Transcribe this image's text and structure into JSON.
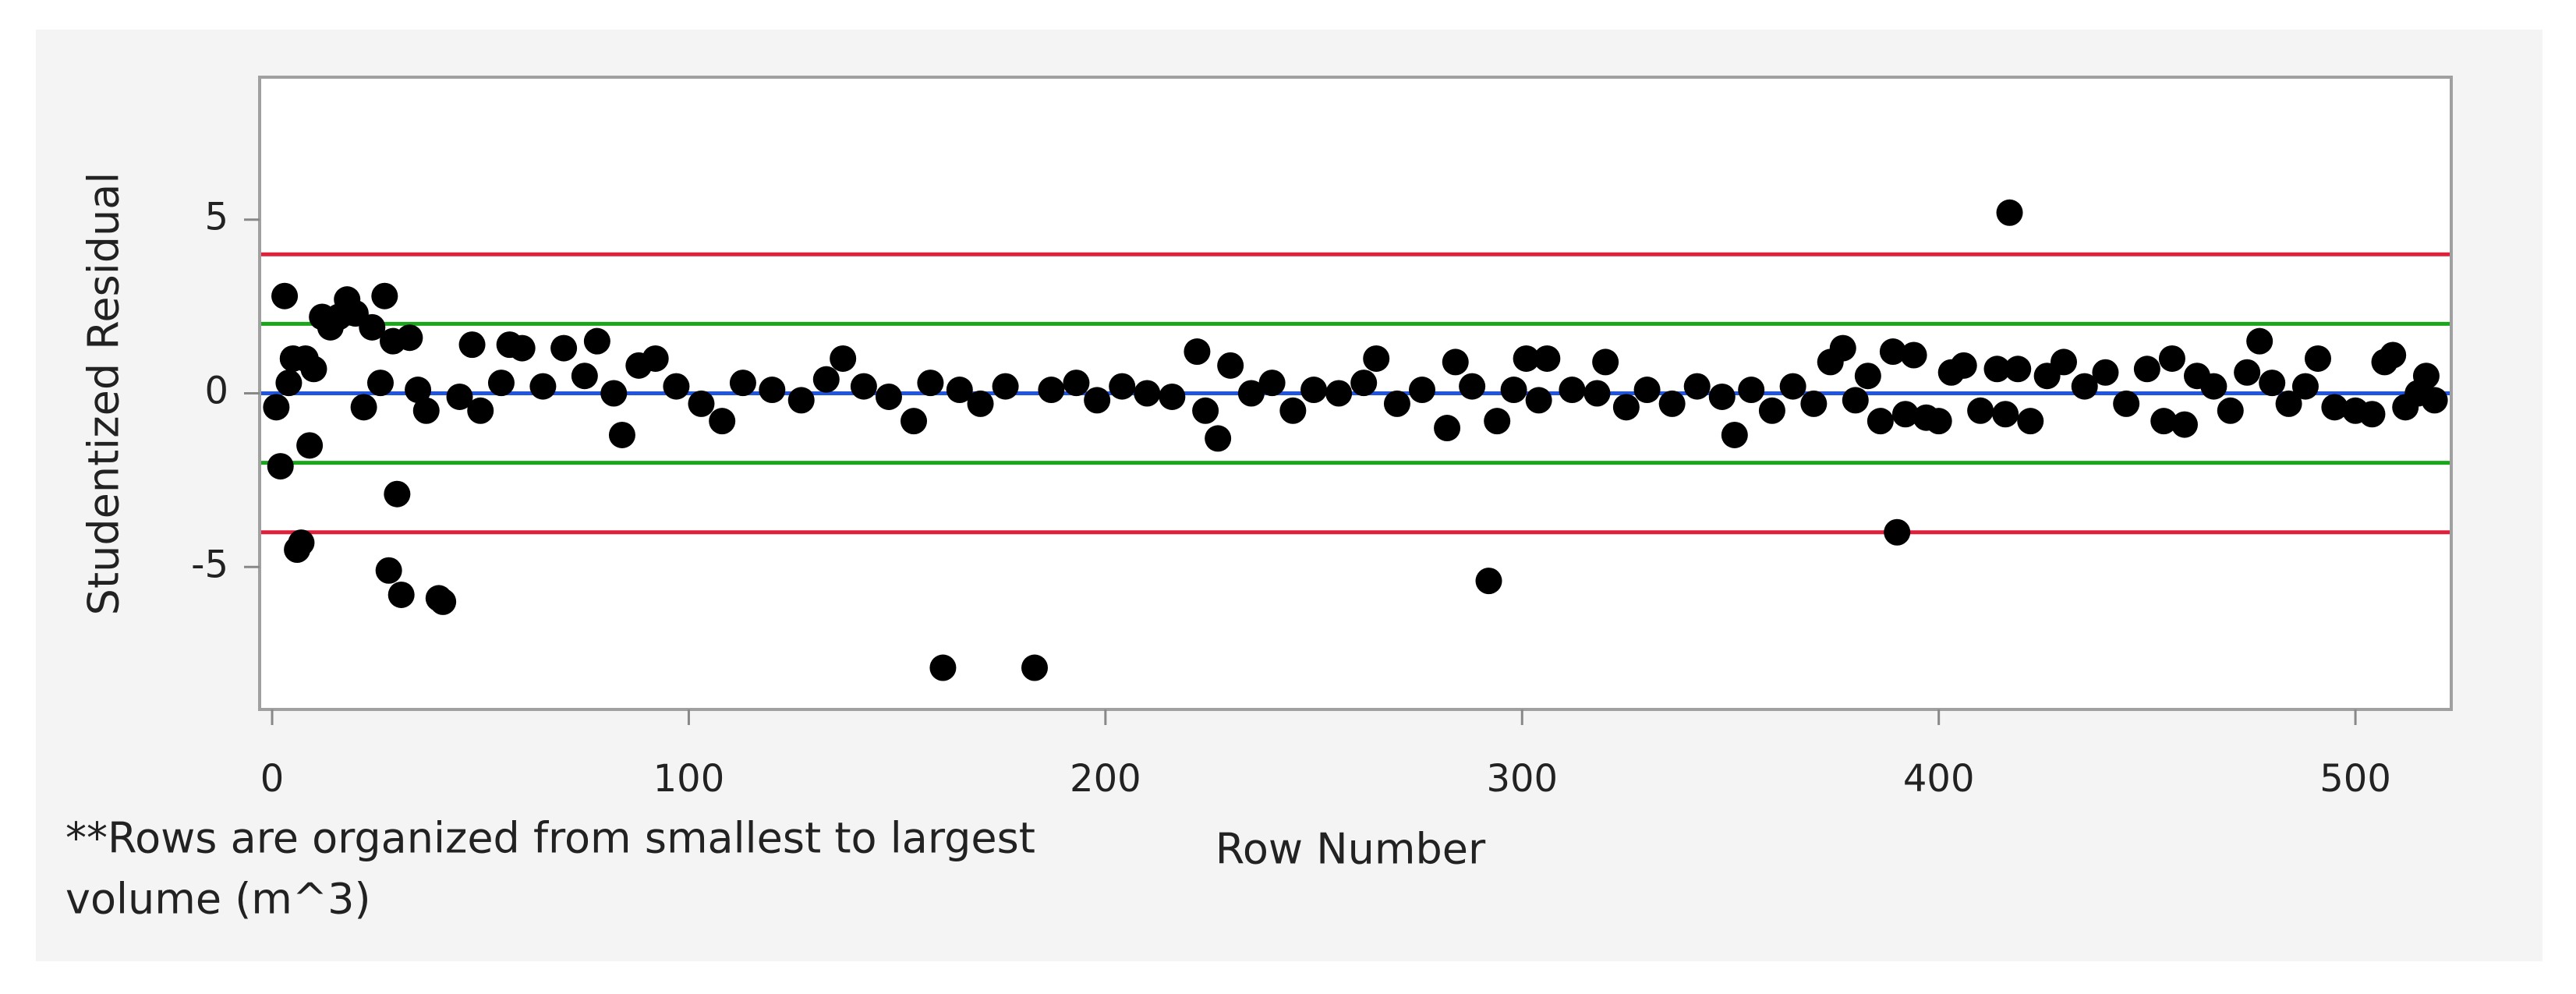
{
  "chart_data": {
    "type": "scatter",
    "x_label": "Row Number",
    "y_label": "Studentized Residual",
    "note": [
      "**Rows are organized from smallest to largest",
      "volume (m^3)"
    ],
    "xlim": [
      -3,
      523
    ],
    "xticks": [
      0,
      100,
      200,
      300,
      400,
      500
    ],
    "ylim": [
      -9.1,
      9.1
    ],
    "yticks": [
      -5,
      0,
      5
    ],
    "grid": false,
    "color": "#000000",
    "reference_lines": [
      {
        "value": 4,
        "color": "#e0203a"
      },
      {
        "value": 2,
        "color": "#1aa61a"
      },
      {
        "value": 0,
        "color": "#2255dd"
      },
      {
        "value": -2,
        "color": "#1aa61a"
      },
      {
        "value": -4,
        "color": "#e0203a"
      }
    ],
    "x": [
      1,
      2,
      3,
      4,
      5,
      6,
      7,
      8,
      9,
      10,
      12,
      14,
      16,
      18,
      20,
      22,
      24,
      26,
      27,
      28,
      29,
      30,
      31,
      33,
      35,
      37,
      40,
      41,
      45,
      48,
      50,
      55,
      57,
      60,
      65,
      70,
      75,
      78,
      82,
      84,
      88,
      92,
      97,
      103,
      108,
      113,
      120,
      127,
      133,
      137,
      142,
      148,
      154,
      158,
      161,
      165,
      170,
      176,
      183,
      187,
      193,
      198,
      204,
      210,
      216,
      222,
      224,
      227,
      230,
      235,
      240,
      245,
      250,
      256,
      262,
      265,
      270,
      276,
      282,
      284,
      288,
      292,
      294,
      298,
      301,
      304,
      306,
      312,
      318,
      320,
      325,
      330,
      336,
      342,
      348,
      351,
      355,
      360,
      365,
      370,
      374,
      377,
      380,
      383,
      386,
      389,
      390,
      392,
      394,
      397,
      400,
      403,
      406,
      410,
      414,
      416,
      417,
      419,
      422,
      426,
      430,
      435,
      440,
      445,
      450,
      454,
      456,
      459,
      462,
      466,
      470,
      474,
      477,
      480,
      484,
      488,
      491,
      495,
      500,
      504,
      507,
      509,
      512,
      515,
      517,
      519
    ],
    "values": [
      -0.4,
      -2.1,
      2.8,
      0.3,
      1.0,
      -4.5,
      -4.3,
      1.0,
      -1.5,
      0.7,
      2.2,
      1.9,
      2.2,
      2.7,
      2.3,
      -0.4,
      1.9,
      0.3,
      2.8,
      -5.1,
      1.5,
      -2.9,
      -5.8,
      1.6,
      0.1,
      -0.5,
      -5.9,
      -6.0,
      -0.1,
      1.4,
      -0.5,
      0.3,
      1.4,
      1.3,
      0.2,
      1.3,
      0.5,
      1.5,
      0.0,
      -1.2,
      0.8,
      1.0,
      0.2,
      -0.3,
      -0.8,
      0.3,
      0.1,
      -0.2,
      0.4,
      1.0,
      0.2,
      -0.1,
      -0.8,
      0.3,
      -7.9,
      0.1,
      -0.3,
      0.2,
      -7.9,
      0.1,
      0.3,
      -0.2,
      0.2,
      0.0,
      -0.1,
      1.2,
      -0.5,
      -1.3,
      0.8,
      0.0,
      0.3,
      -0.5,
      0.1,
      0.0,
      0.3,
      1.0,
      -0.3,
      0.1,
      -1.0,
      0.9,
      0.2,
      -5.4,
      -0.8,
      0.1,
      1.0,
      -0.2,
      1.0,
      0.1,
      0.0,
      0.9,
      -0.4,
      0.1,
      -0.3,
      0.2,
      -0.1,
      -1.2,
      0.1,
      -0.5,
      0.2,
      -0.3,
      0.9,
      1.3,
      -0.2,
      0.5,
      -0.8,
      1.2,
      -4.0,
      -0.6,
      1.1,
      -0.7,
      -0.8,
      0.6,
      0.8,
      -0.5,
      0.7,
      -0.6,
      5.2,
      0.7,
      -0.8,
      0.5,
      0.9,
      0.2,
      0.6,
      -0.3,
      0.7,
      -0.8,
      1.0,
      -0.9,
      0.5,
      0.2,
      -0.5,
      0.6,
      1.5,
      0.3,
      -0.3,
      0.2,
      1.0,
      -0.4,
      -0.5,
      -0.6,
      0.9,
      1.1,
      -0.4,
      0.0,
      0.5,
      -0.2
    ]
  }
}
